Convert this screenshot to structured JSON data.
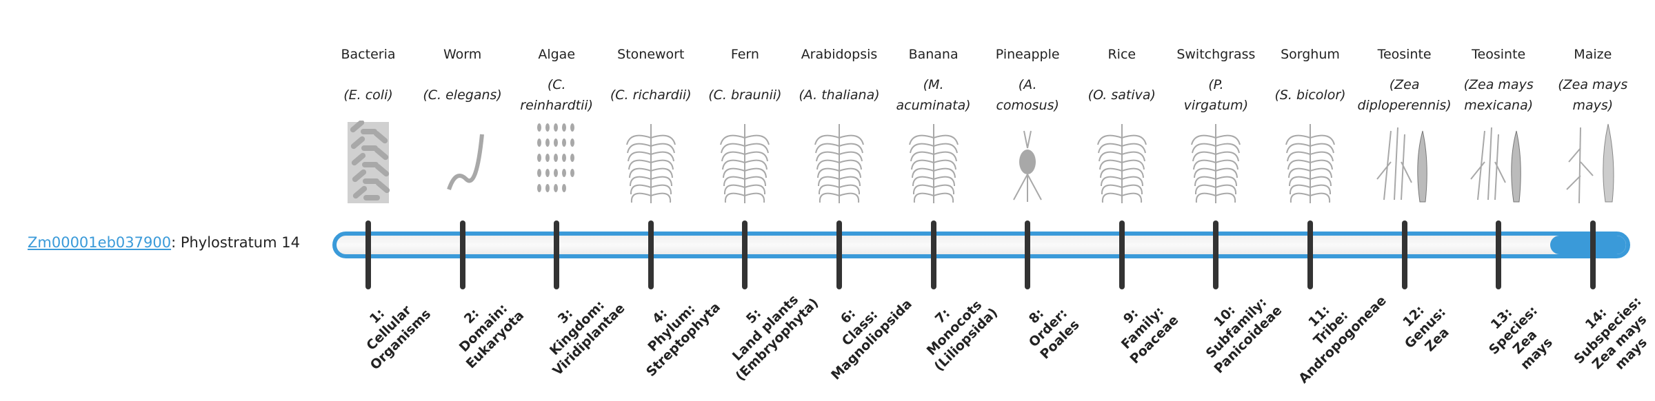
{
  "gene": {
    "id": "Zm00001eb037900",
    "suffix": ": Phylostratum 14"
  },
  "colors": {
    "accent": "#3a9ad9",
    "tick": "#333333",
    "image_gray": "#a8a8a8"
  },
  "progress": {
    "highlighted_stratum": 14,
    "total_strata": 14
  },
  "strata": [
    {
      "common": "Bacteria",
      "sci": [
        "(E. coli)"
      ],
      "label": [
        "1:",
        "Cellular",
        "Organisms"
      ],
      "icon": "bacteria-icon"
    },
    {
      "common": "Worm",
      "sci": [
        "(C. elegans)"
      ],
      "label": [
        "2:",
        "Domain:",
        "Eukaryota"
      ],
      "icon": "worm-icon"
    },
    {
      "common": "Algae",
      "sci": [
        "(C.",
        "reinhardtii)"
      ],
      "label": [
        "3:",
        "Kingdom:",
        "Viridiplantae"
      ],
      "icon": "algae-icon"
    },
    {
      "common": "Stonewort",
      "sci": [
        "(C. richardii)"
      ],
      "label": [
        "4:",
        "Phylum:",
        "Streptophyta"
      ],
      "icon": "stonewort-icon"
    },
    {
      "common": "Fern",
      "sci": [
        "(C. braunii)"
      ],
      "label": [
        "5:",
        "Land plants",
        "(Embryophyta)"
      ],
      "icon": "fern-icon"
    },
    {
      "common": "Arabidopsis",
      "sci": [
        "(A. thaliana)"
      ],
      "label": [
        "6:",
        "Class:",
        "Magnoliopsida"
      ],
      "icon": "arabidopsis-icon"
    },
    {
      "common": "Banana",
      "sci": [
        "(M.",
        "acuminata)"
      ],
      "label": [
        "7:",
        "Monocots",
        "(Liliopsida)"
      ],
      "icon": "banana-icon"
    },
    {
      "common": "Pineapple",
      "sci": [
        "(A.",
        "comosus)"
      ],
      "label": [
        "8:",
        "Order:",
        "Poales"
      ],
      "icon": "pineapple-icon"
    },
    {
      "common": "Rice",
      "sci": [
        "(O. sativa)"
      ],
      "label": [
        "9:",
        "Family:",
        "Poaceae"
      ],
      "icon": "rice-icon"
    },
    {
      "common": "Switchgrass",
      "sci": [
        "(P.",
        "virgatum)"
      ],
      "label": [
        "10:",
        "Subfamily:",
        "Panicoideae"
      ],
      "icon": "switchgrass-icon"
    },
    {
      "common": "Sorghum",
      "sci": [
        "(S. bicolor)"
      ],
      "label": [
        "11:",
        "Tribe:",
        "Andropogoneae"
      ],
      "icon": "sorghum-icon"
    },
    {
      "common": "Teosinte",
      "sci": [
        "(Zea",
        "diploperennis)"
      ],
      "label": [
        "12:",
        "Genus:",
        "Zea"
      ],
      "icon": "teosinte-icon"
    },
    {
      "common": "Teosinte",
      "sci": [
        "(Zea mays",
        "mexicana)"
      ],
      "label": [
        "13:",
        "Species:",
        "Zea",
        "mays"
      ],
      "icon": "teosinte-icon"
    },
    {
      "common": "Maize",
      "sci": [
        "(Zea mays",
        "mays)"
      ],
      "label": [
        "14:",
        "Subspecies:",
        "Zea mays",
        "mays"
      ],
      "icon": "maize-icon"
    }
  ]
}
